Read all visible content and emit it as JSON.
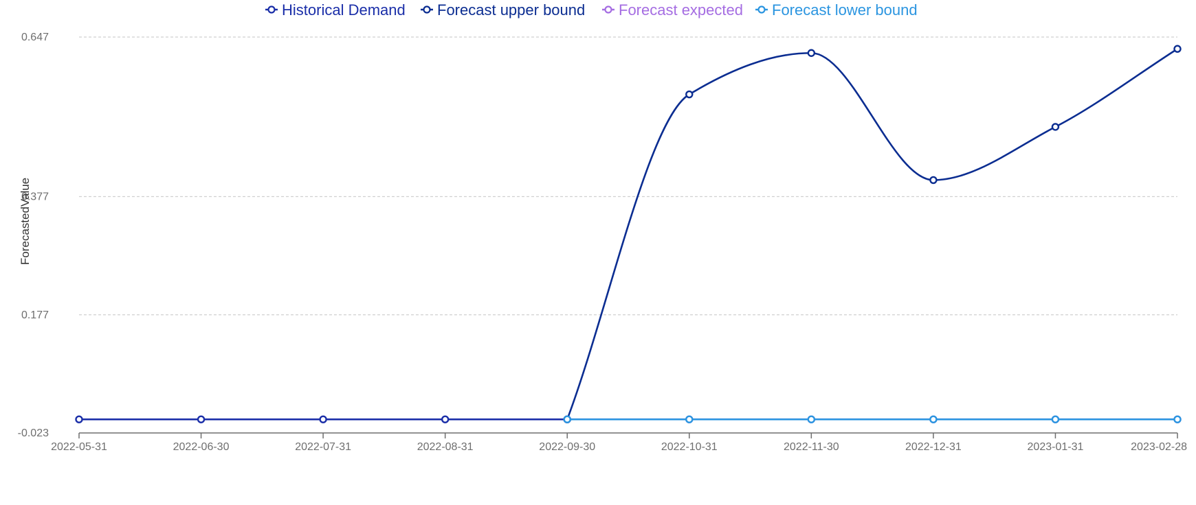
{
  "chart_data": {
    "type": "line",
    "title": "",
    "xlabel": "",
    "ylabel": "ForecastedValue",
    "categories": [
      "2022-05-31",
      "2022-06-30",
      "2022-07-31",
      "2022-08-31",
      "2022-09-30",
      "2022-10-31",
      "2022-11-30",
      "2022-12-31",
      "2023-01-31",
      "2023-02-28"
    ],
    "y_ticks": [
      "0.647",
      "0.377",
      "0.177",
      "-0.023"
    ],
    "ylim": [
      -0.023,
      0.647
    ],
    "grid": true,
    "legend_position": "top",
    "series": [
      {
        "name": "Historical Demand",
        "color": "#1a2ea8",
        "values": [
          0,
          0,
          0,
          0,
          0,
          null,
          null,
          null,
          null,
          null
        ]
      },
      {
        "name": "Forecast upper bound",
        "color": "#0b2d91",
        "values": [
          null,
          null,
          null,
          null,
          0,
          0.55,
          0.62,
          0.405,
          0.495,
          0.627
        ]
      },
      {
        "name": "Forecast expected",
        "color": "#a56de2",
        "values": [
          null,
          null,
          null,
          null,
          0,
          0,
          0,
          0,
          0,
          0
        ]
      },
      {
        "name": "Forecast lower bound",
        "color": "#2b95e0",
        "values": [
          null,
          null,
          null,
          null,
          0,
          0,
          0,
          0,
          0,
          0
        ]
      }
    ]
  }
}
